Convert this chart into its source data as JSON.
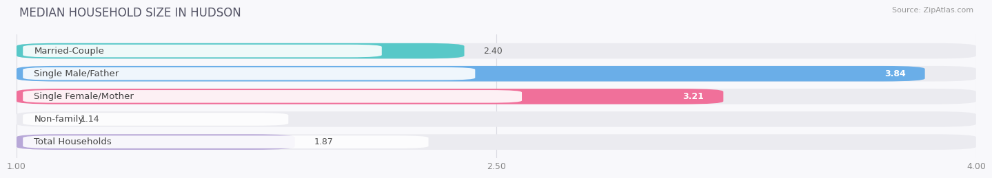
{
  "title": "MEDIAN HOUSEHOLD SIZE IN HUDSON",
  "source": "Source: ZipAtlas.com",
  "categories": [
    "Married-Couple",
    "Single Male/Father",
    "Single Female/Mother",
    "Non-family",
    "Total Households"
  ],
  "values": [
    2.4,
    3.84,
    3.21,
    1.14,
    1.87
  ],
  "bar_colors": [
    "#58c8c8",
    "#6aaee8",
    "#f0709a",
    "#f5c98a",
    "#b8a8d8"
  ],
  "bar_bg_color": "#ebebf0",
  "xlim": [
    1.0,
    4.0
  ],
  "xticks": [
    1.0,
    2.5,
    4.0
  ],
  "xtick_labels": [
    "1.00",
    "2.50",
    "4.00"
  ],
  "background_color": "#ffffff",
  "fig_bg_color": "#f8f8fb",
  "title_fontsize": 12,
  "label_fontsize": 9.5,
  "value_fontsize": 9
}
